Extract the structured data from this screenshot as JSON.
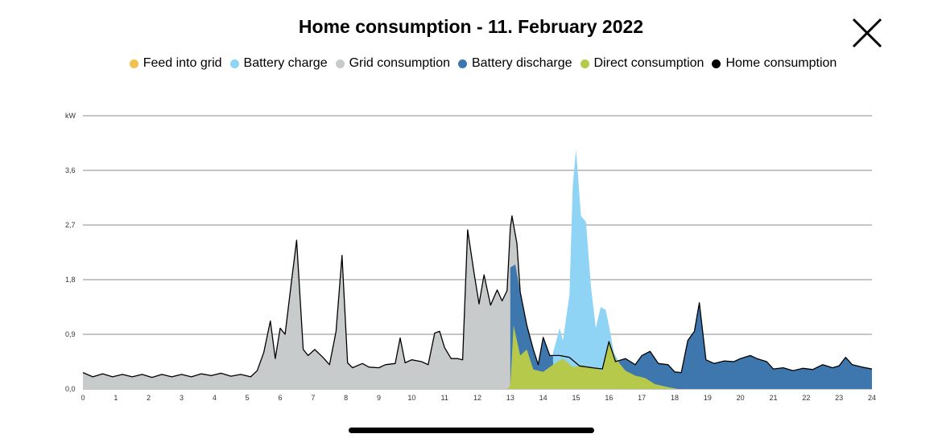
{
  "header": {
    "title": "Home consumption - 11. February 2022",
    "close_icon": "close-x-icon"
  },
  "colors": {
    "feed_into_grid": "#f2c14e",
    "battery_charge": "#8fd4f4",
    "grid_consumption": "#c8cbcb",
    "battery_discharge": "#3d77ad",
    "direct_consumption": "#b6c94a",
    "home_consumption": "#000000"
  },
  "legend": [
    {
      "label": "Feed into grid",
      "color": "#f2c14e"
    },
    {
      "label": "Battery charge",
      "color": "#8fd4f4"
    },
    {
      "label": "Grid consumption",
      "color": "#c8cbcb"
    },
    {
      "label": "Battery discharge",
      "color": "#3d77ad"
    },
    {
      "label": "Direct consumption",
      "color": "#b6c94a"
    },
    {
      "label": "Home consumption",
      "color": "#000000"
    }
  ],
  "chart_data": {
    "type": "area",
    "title": "Home consumption - 11. February 2022",
    "xlabel": "",
    "ylabel": "kW",
    "xlim": [
      0,
      24
    ],
    "ylim": [
      0,
      4.5
    ],
    "x_ticks": [
      "0",
      "1",
      "2",
      "3",
      "4",
      "5",
      "6",
      "7",
      "8",
      "9",
      "10",
      "11",
      "12",
      "13",
      "14",
      "15",
      "16",
      "17",
      "18",
      "19",
      "20",
      "21",
      "22",
      "23",
      "24"
    ],
    "y_ticks": [
      "0,0",
      "0,9",
      "1,8",
      "2,7",
      "3,6",
      "kW"
    ],
    "grid": true,
    "legend_position": "top",
    "series": [
      {
        "name": "Grid consumption",
        "kind": "grid",
        "points": [
          [
            0,
            0.27
          ],
          [
            0.3,
            0.2
          ],
          [
            0.6,
            0.25
          ],
          [
            0.9,
            0.2
          ],
          [
            1.2,
            0.24
          ],
          [
            1.5,
            0.2
          ],
          [
            1.8,
            0.24
          ],
          [
            2.1,
            0.19
          ],
          [
            2.4,
            0.24
          ],
          [
            2.7,
            0.2
          ],
          [
            3,
            0.24
          ],
          [
            3.3,
            0.2
          ],
          [
            3.6,
            0.25
          ],
          [
            3.9,
            0.22
          ],
          [
            4.2,
            0.26
          ],
          [
            4.5,
            0.21
          ],
          [
            4.8,
            0.24
          ],
          [
            5.1,
            0.2
          ],
          [
            5.3,
            0.3
          ],
          [
            5.5,
            0.6
          ],
          [
            5.7,
            1.12
          ],
          [
            5.85,
            0.5
          ],
          [
            6.0,
            1.0
          ],
          [
            6.15,
            0.9
          ],
          [
            6.35,
            1.8
          ],
          [
            6.5,
            2.45
          ],
          [
            6.7,
            0.65
          ],
          [
            6.85,
            0.55
          ],
          [
            7.05,
            0.65
          ],
          [
            7.3,
            0.52
          ],
          [
            7.5,
            0.4
          ],
          [
            7.7,
            0.95
          ],
          [
            7.88,
            2.2
          ],
          [
            8.05,
            0.43
          ],
          [
            8.2,
            0.35
          ],
          [
            8.5,
            0.42
          ],
          [
            8.7,
            0.36
          ],
          [
            9.0,
            0.35
          ],
          [
            9.2,
            0.4
          ],
          [
            9.5,
            0.42
          ],
          [
            9.65,
            0.84
          ],
          [
            9.8,
            0.43
          ],
          [
            10.0,
            0.48
          ],
          [
            10.3,
            0.45
          ],
          [
            10.5,
            0.4
          ],
          [
            10.7,
            0.92
          ],
          [
            10.85,
            0.95
          ],
          [
            11.0,
            0.68
          ],
          [
            11.2,
            0.5
          ],
          [
            11.4,
            0.5
          ],
          [
            11.55,
            0.48
          ],
          [
            11.7,
            2.62
          ],
          [
            11.9,
            1.9
          ],
          [
            12.05,
            1.4
          ],
          [
            12.2,
            1.88
          ],
          [
            12.4,
            1.38
          ],
          [
            12.6,
            1.63
          ],
          [
            12.75,
            1.45
          ],
          [
            12.9,
            1.62
          ],
          [
            13.0,
            2.65
          ],
          [
            13.05,
            2.85
          ],
          [
            13.2,
            2.4
          ],
          [
            13.3,
            1.6
          ],
          [
            13.3,
            0.0
          ]
        ]
      },
      {
        "name": "Direct consumption",
        "kind": "direct",
        "points": [
          [
            12.9,
            0.0
          ],
          [
            13.0,
            0.05
          ],
          [
            13.1,
            1.05
          ],
          [
            13.3,
            0.55
          ],
          [
            13.5,
            0.65
          ],
          [
            13.7,
            0.32
          ],
          [
            14.0,
            0.28
          ],
          [
            14.3,
            0.4
          ],
          [
            14.6,
            0.5
          ],
          [
            14.9,
            0.36
          ],
          [
            15.2,
            0.38
          ],
          [
            15.5,
            0.36
          ],
          [
            15.8,
            0.3
          ],
          [
            16.0,
            0.8
          ],
          [
            16.2,
            0.5
          ],
          [
            16.5,
            0.3
          ],
          [
            16.8,
            0.22
          ],
          [
            17.1,
            0.18
          ],
          [
            17.4,
            0.08
          ],
          [
            17.8,
            0.03
          ],
          [
            18.1,
            0.0
          ]
        ]
      },
      {
        "name": "Battery charge",
        "kind": "charge",
        "points": [
          [
            14.3,
            0.6
          ],
          [
            14.5,
            1.0
          ],
          [
            14.6,
            0.8
          ],
          [
            14.8,
            1.55
          ],
          [
            14.9,
            3.35
          ],
          [
            15.0,
            3.95
          ],
          [
            15.15,
            2.85
          ],
          [
            15.3,
            2.75
          ],
          [
            15.45,
            1.7
          ],
          [
            15.6,
            1.0
          ],
          [
            15.75,
            1.35
          ],
          [
            15.9,
            1.3
          ],
          [
            16.0,
            1.05
          ],
          [
            16.15,
            0.6
          ],
          [
            16.3,
            0.45
          ]
        ]
      },
      {
        "name": "Battery discharge",
        "kind": "discharge",
        "points": [
          [
            13.0,
            2.0
          ],
          [
            13.15,
            2.05
          ],
          [
            13.3,
            1.6
          ],
          [
            13.5,
            1.05
          ],
          [
            13.7,
            0.65
          ],
          [
            13.85,
            0.4
          ],
          [
            14.0,
            0.85
          ],
          [
            14.2,
            0.55
          ],
          [
            14.5,
            0.55
          ],
          [
            14.8,
            0.52
          ],
          [
            15.1,
            0.38
          ],
          [
            15.5,
            0.35
          ],
          [
            15.8,
            0.33
          ],
          [
            16.0,
            0.78
          ],
          [
            16.2,
            0.45
          ],
          [
            16.5,
            0.5
          ],
          [
            16.8,
            0.4
          ],
          [
            17.0,
            0.55
          ],
          [
            17.25,
            0.62
          ],
          [
            17.5,
            0.42
          ],
          [
            17.8,
            0.4
          ],
          [
            18.0,
            0.28
          ],
          [
            18.2,
            0.27
          ],
          [
            18.4,
            0.8
          ],
          [
            18.6,
            0.95
          ],
          [
            18.75,
            1.42
          ],
          [
            18.95,
            0.48
          ],
          [
            19.2,
            0.42
          ],
          [
            19.5,
            0.46
          ],
          [
            19.8,
            0.45
          ],
          [
            20.0,
            0.5
          ],
          [
            20.3,
            0.55
          ],
          [
            20.5,
            0.5
          ],
          [
            20.8,
            0.45
          ],
          [
            21.0,
            0.33
          ],
          [
            21.3,
            0.35
          ],
          [
            21.6,
            0.3
          ],
          [
            21.9,
            0.34
          ],
          [
            22.2,
            0.32
          ],
          [
            22.5,
            0.4
          ],
          [
            22.8,
            0.35
          ],
          [
            23.0,
            0.38
          ],
          [
            23.2,
            0.52
          ],
          [
            23.4,
            0.4
          ],
          [
            23.7,
            0.36
          ],
          [
            24.0,
            0.33
          ]
        ]
      },
      {
        "name": "Home consumption",
        "kind": "home",
        "points": [
          [
            0,
            0.27
          ],
          [
            0.3,
            0.2
          ],
          [
            0.6,
            0.25
          ],
          [
            0.9,
            0.2
          ],
          [
            1.2,
            0.24
          ],
          [
            1.5,
            0.2
          ],
          [
            1.8,
            0.24
          ],
          [
            2.1,
            0.19
          ],
          [
            2.4,
            0.24
          ],
          [
            2.7,
            0.2
          ],
          [
            3,
            0.24
          ],
          [
            3.3,
            0.2
          ],
          [
            3.6,
            0.25
          ],
          [
            3.9,
            0.22
          ],
          [
            4.2,
            0.26
          ],
          [
            4.5,
            0.21
          ],
          [
            4.8,
            0.24
          ],
          [
            5.1,
            0.2
          ],
          [
            5.3,
            0.3
          ],
          [
            5.5,
            0.6
          ],
          [
            5.7,
            1.12
          ],
          [
            5.85,
            0.5
          ],
          [
            6.0,
            1.0
          ],
          [
            6.15,
            0.9
          ],
          [
            6.35,
            1.8
          ],
          [
            6.5,
            2.45
          ],
          [
            6.7,
            0.65
          ],
          [
            6.85,
            0.55
          ],
          [
            7.05,
            0.65
          ],
          [
            7.3,
            0.52
          ],
          [
            7.5,
            0.4
          ],
          [
            7.7,
            0.95
          ],
          [
            7.88,
            2.2
          ],
          [
            8.05,
            0.43
          ],
          [
            8.2,
            0.35
          ],
          [
            8.5,
            0.42
          ],
          [
            8.7,
            0.36
          ],
          [
            9.0,
            0.35
          ],
          [
            9.2,
            0.4
          ],
          [
            9.5,
            0.42
          ],
          [
            9.65,
            0.84
          ],
          [
            9.8,
            0.43
          ],
          [
            10.0,
            0.48
          ],
          [
            10.3,
            0.45
          ],
          [
            10.5,
            0.4
          ],
          [
            10.7,
            0.92
          ],
          [
            10.85,
            0.95
          ],
          [
            11.0,
            0.68
          ],
          [
            11.2,
            0.5
          ],
          [
            11.4,
            0.5
          ],
          [
            11.55,
            0.48
          ],
          [
            11.7,
            2.62
          ],
          [
            11.9,
            1.9
          ],
          [
            12.05,
            1.4
          ],
          [
            12.2,
            1.88
          ],
          [
            12.4,
            1.38
          ],
          [
            12.6,
            1.63
          ],
          [
            12.75,
            1.45
          ],
          [
            12.9,
            1.62
          ],
          [
            13.0,
            2.65
          ],
          [
            13.05,
            2.85
          ],
          [
            13.2,
            2.4
          ],
          [
            13.3,
            1.6
          ],
          [
            13.5,
            1.05
          ],
          [
            13.7,
            0.65
          ],
          [
            13.85,
            0.4
          ],
          [
            14.0,
            0.85
          ],
          [
            14.2,
            0.55
          ],
          [
            14.5,
            0.55
          ],
          [
            14.8,
            0.52
          ],
          [
            15.1,
            0.38
          ],
          [
            15.5,
            0.35
          ],
          [
            15.8,
            0.33
          ],
          [
            16.0,
            0.78
          ],
          [
            16.2,
            0.45
          ],
          [
            16.5,
            0.5
          ],
          [
            16.8,
            0.4
          ],
          [
            17.0,
            0.55
          ],
          [
            17.25,
            0.62
          ],
          [
            17.5,
            0.42
          ],
          [
            17.8,
            0.4
          ],
          [
            18.0,
            0.28
          ],
          [
            18.2,
            0.27
          ],
          [
            18.4,
            0.8
          ],
          [
            18.6,
            0.95
          ],
          [
            18.75,
            1.42
          ],
          [
            18.95,
            0.48
          ],
          [
            19.2,
            0.42
          ],
          [
            19.5,
            0.46
          ],
          [
            19.8,
            0.45
          ],
          [
            20.0,
            0.5
          ],
          [
            20.3,
            0.55
          ],
          [
            20.5,
            0.5
          ],
          [
            20.8,
            0.45
          ],
          [
            21.0,
            0.33
          ],
          [
            21.3,
            0.35
          ],
          [
            21.6,
            0.3
          ],
          [
            21.9,
            0.34
          ],
          [
            22.2,
            0.32
          ],
          [
            22.5,
            0.4
          ],
          [
            22.8,
            0.35
          ],
          [
            23.0,
            0.38
          ],
          [
            23.2,
            0.52
          ],
          [
            23.4,
            0.4
          ],
          [
            23.7,
            0.36
          ],
          [
            24.0,
            0.33
          ]
        ]
      }
    ]
  }
}
